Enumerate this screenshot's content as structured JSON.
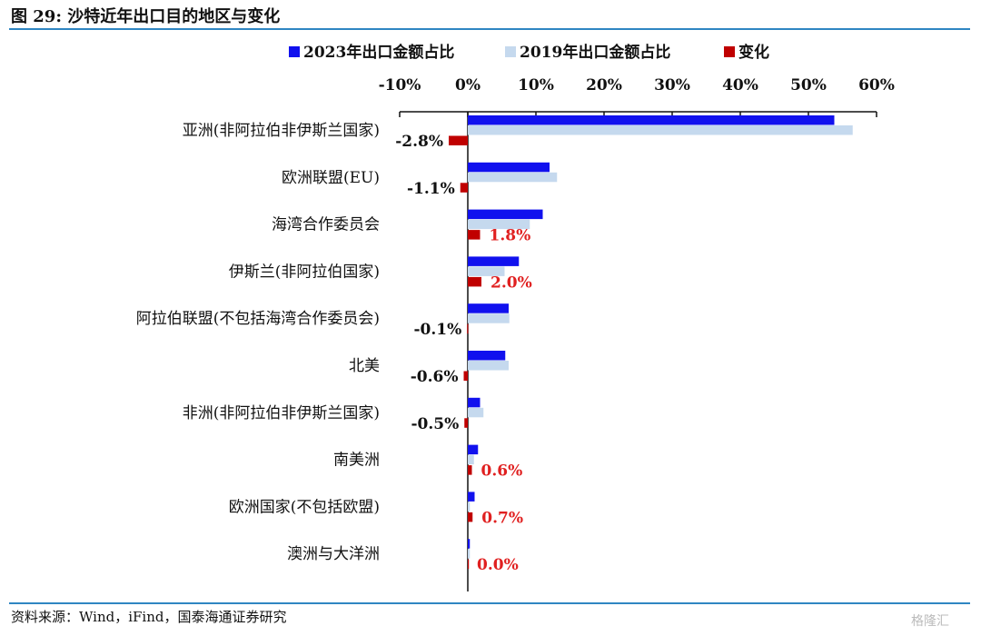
{
  "figure": {
    "title": "图 29:  沙特近年出口目的地区与变化",
    "source": "资料来源：Wind，iFind，国泰海通证券研究",
    "watermark": "格隆汇"
  },
  "colors": {
    "series_2023": "#1111ee",
    "series_2019": "#c5d9ee",
    "series_change": "#c00000",
    "positive_label": "#e02020",
    "negative_label": "#111111",
    "rule": "#2f86c2"
  },
  "chart_data": {
    "type": "bar",
    "orientation": "horizontal",
    "title": "",
    "xlabel": "",
    "ylabel": "",
    "xlim": [
      -0.1,
      0.6
    ],
    "x_ticks": [
      "-10%",
      "0%",
      "10%",
      "20%",
      "30%",
      "40%",
      "50%",
      "60%"
    ],
    "x_tick_values": [
      -0.1,
      0.0,
      0.1,
      0.2,
      0.3,
      0.4,
      0.5,
      0.6
    ],
    "x_axis_position": "top",
    "grid": false,
    "legend_position": "top",
    "categories": [
      "亚洲(非阿拉伯非伊斯兰国家)",
      "欧洲联盟(EU)",
      "海湾合作委员会",
      "伊斯兰(非阿拉伯国家)",
      "阿拉伯联盟(不包括海湾合作委员会)",
      "北美",
      "非洲(非阿拉伯非伊斯兰国家)",
      "南美洲",
      "欧洲国家(不包括欧盟)",
      "澳洲与大洋洲"
    ],
    "series": [
      {
        "name": "2023年出口金额占比",
        "values": [
          0.538,
          0.12,
          0.11,
          0.075,
          0.06,
          0.055,
          0.018,
          0.015,
          0.01,
          0.003
        ]
      },
      {
        "name": "2019年出口金额占比",
        "values": [
          0.565,
          0.131,
          0.091,
          0.054,
          0.061,
          0.06,
          0.023,
          0.009,
          0.003,
          0.003
        ]
      },
      {
        "name": "变化",
        "values": [
          -0.028,
          -0.011,
          0.018,
          0.02,
          -0.001,
          -0.006,
          -0.005,
          0.006,
          0.007,
          0.0
        ]
      }
    ],
    "data_labels": [
      "-2.8%",
      "-1.1%",
      "1.8%",
      "2.0%",
      "-0.1%",
      "-0.6%",
      "-0.5%",
      "0.6%",
      "0.7%",
      "0.0%"
    ]
  }
}
